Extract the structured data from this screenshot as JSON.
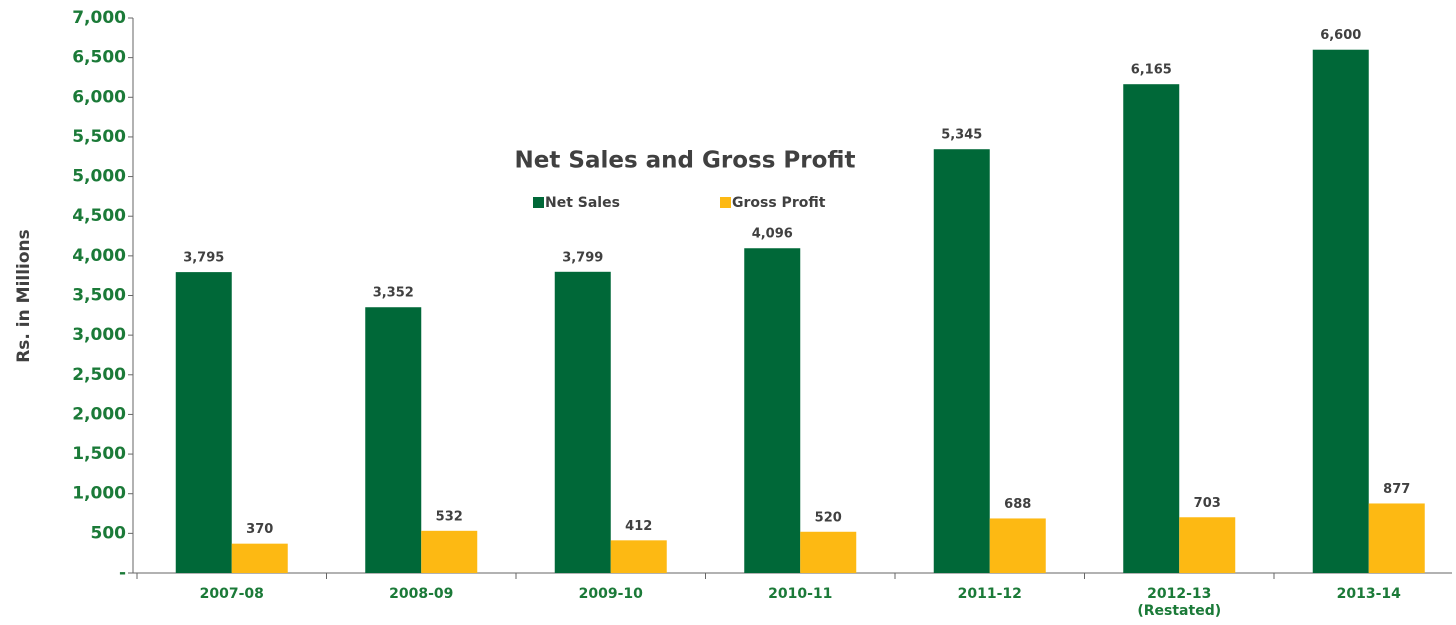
{
  "chart_data": {
    "type": "bar",
    "title": "Net Sales and Gross Profit",
    "ylabel": "Rs. in Millions",
    "categories": [
      "2007-08",
      "2008-09",
      "2009-10",
      "2010-11",
      "2011-12",
      "2012-13\n(Restated)",
      "2013-14"
    ],
    "series": [
      {
        "name": "Net Sales",
        "color": "#006838",
        "values": [
          3795,
          3352,
          3799,
          4096,
          5345,
          6165,
          6600
        ],
        "value_labels": [
          "3,795",
          "3,352",
          "3,799",
          "4,096",
          "5,345",
          "6,165",
          "6,600"
        ]
      },
      {
        "name": "Gross Profit",
        "color": "#fdb913",
        "values": [
          370,
          532,
          412,
          520,
          688,
          703,
          877
        ]
      }
    ],
    "ylim": [
      0,
      7000
    ],
    "yticks": [
      {
        "value": 0,
        "label": "-"
      },
      500,
      {
        "value": 1000,
        "label": "1,000"
      },
      {
        "value": 1500,
        "label": "1,500"
      },
      {
        "value": 2000,
        "label": "2,000"
      },
      {
        "value": 2500,
        "label": "2,500"
      },
      {
        "value": 3000,
        "label": "3,000"
      },
      {
        "value": 3500,
        "label": "3,500"
      },
      {
        "value": 4000,
        "label": "4,000"
      },
      {
        "value": 4500,
        "label": "4,500"
      },
      {
        "value": 5000,
        "label": "5,000"
      },
      {
        "value": 5500,
        "label": "5,500"
      },
      {
        "value": 6000,
        "label": "6,000"
      },
      {
        "value": 6500,
        "label": "6,500"
      },
      {
        "value": 7000,
        "label": "7,000"
      }
    ],
    "grid": false
  }
}
